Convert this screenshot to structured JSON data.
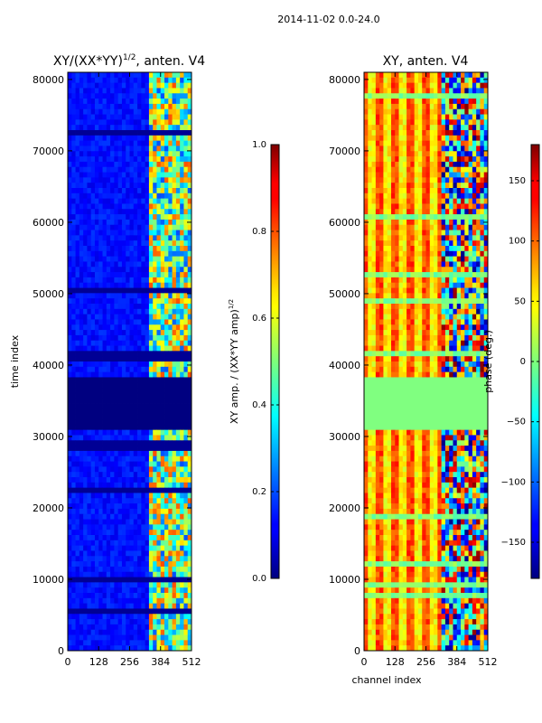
{
  "figure": {
    "suptitle": "2014-11-02 0.0-24.0"
  },
  "colors": {
    "colormap": "jet",
    "axes_edge": "#000000",
    "text": "#000000",
    "gap_left": "#00007f",
    "gap_right": "#7dff7a"
  },
  "chart_data": [
    {
      "type": "heatmap",
      "title_main": "XY/(XX*YY)",
      "title_sup": "1/2",
      "title_tail": ", anten. V4",
      "xlabel": "",
      "ylabel": "time index",
      "xlim": [
        0,
        512
      ],
      "ylim": [
        0,
        81000
      ],
      "xticks": [
        0,
        128,
        256,
        384,
        512
      ],
      "yticks": [
        0,
        10000,
        20000,
        30000,
        40000,
        50000,
        60000,
        70000,
        80000
      ],
      "colorbar": {
        "label_main": "XY amp. / (XX*YY amp)",
        "label_sup": "1/2",
        "range": [
          0.0,
          1.0
        ],
        "ticks": [
          "0.0",
          "0.2",
          "0.4",
          "0.6",
          "0.8",
          "1.0"
        ]
      },
      "features": {
        "data_gap_time_range": [
          30800,
          38000
        ],
        "bright_channel_range": [
          330,
          512
        ],
        "background_level": 0.1,
        "bright_level": 0.55
      }
    },
    {
      "type": "heatmap",
      "title": "XY, anten. V4",
      "xlabel": "channel index",
      "ylabel": "",
      "xlim": [
        0,
        512
      ],
      "ylim": [
        0,
        81000
      ],
      "xticks": [
        0,
        128,
        256,
        384,
        512
      ],
      "yticks": [
        0,
        10000,
        20000,
        30000,
        40000,
        50000,
        60000,
        70000,
        80000
      ],
      "colorbar": {
        "label": "phase (deg.)",
        "range": [
          -180,
          180
        ],
        "ticks": [
          "−150",
          "−100",
          "−50",
          "0",
          "50",
          "100",
          "150"
        ]
      },
      "features": {
        "data_gap_time_range": [
          30800,
          38000
        ],
        "noisy_channel_range": [
          320,
          512
        ],
        "stripe_period_channels": 64,
        "background_phase_deg": 100
      }
    }
  ]
}
